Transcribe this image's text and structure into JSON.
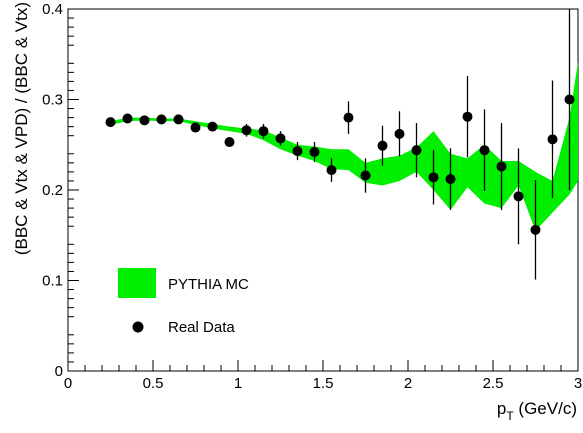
{
  "chart_data": {
    "type": "scatter",
    "xlabel_main": "p",
    "xlabel_sub": "T",
    "xlabel_unit": " (GeV/c)",
    "ylabel": "(BBC & Vtx & VPD) / (BBC & Vtx)",
    "xlim": [
      0,
      3
    ],
    "ylim": [
      0,
      0.4
    ],
    "xticks": [
      {
        "value": 0,
        "label": "0"
      },
      {
        "value": 0.5,
        "label": "0.5"
      },
      {
        "value": 1,
        "label": "1"
      },
      {
        "value": 1.5,
        "label": "1.5"
      },
      {
        "value": 2,
        "label": "2"
      },
      {
        "value": 2.5,
        "label": "2.5"
      },
      {
        "value": 3,
        "label": "3"
      }
    ],
    "yticks": [
      {
        "value": 0,
        "label": "0"
      },
      {
        "value": 0.1,
        "label": "0.1"
      },
      {
        "value": 0.2,
        "label": "0.2"
      },
      {
        "value": 0.3,
        "label": "0.3"
      },
      {
        "value": 0.4,
        "label": "0.4"
      }
    ],
    "legend": {
      "placement": "bottom-left",
      "entries": [
        {
          "label": "PYTHIA MC",
          "kind": "band"
        },
        {
          "label": "Real Data",
          "kind": "marker"
        }
      ]
    },
    "band": {
      "name": "PYTHIA MC",
      "color": "#00ee00",
      "x": [
        0.25,
        0.35,
        0.45,
        0.55,
        0.65,
        0.75,
        0.85,
        0.95,
        1.05,
        1.15,
        1.25,
        1.35,
        1.45,
        1.55,
        1.65,
        1.75,
        1.85,
        1.95,
        2.05,
        2.15,
        2.25,
        2.35,
        2.45,
        2.55,
        2.65,
        2.75,
        2.85,
        2.95,
        3.0
      ],
      "upper": [
        0.276,
        0.28,
        0.28,
        0.279,
        0.279,
        0.276,
        0.273,
        0.27,
        0.268,
        0.266,
        0.258,
        0.25,
        0.248,
        0.245,
        0.245,
        0.23,
        0.235,
        0.238,
        0.247,
        0.265,
        0.24,
        0.235,
        0.25,
        0.232,
        0.232,
        0.22,
        0.21,
        0.28,
        0.342
      ],
      "lower": [
        0.272,
        0.276,
        0.277,
        0.276,
        0.276,
        0.272,
        0.268,
        0.265,
        0.262,
        0.255,
        0.245,
        0.238,
        0.232,
        0.223,
        0.222,
        0.208,
        0.205,
        0.21,
        0.22,
        0.2,
        0.178,
        0.203,
        0.185,
        0.18,
        0.205,
        0.155,
        0.175,
        0.195,
        0.21
      ]
    },
    "series": [
      {
        "name": "Real Data",
        "color": "#000000",
        "x": [
          0.25,
          0.35,
          0.45,
          0.55,
          0.65,
          0.75,
          0.85,
          0.95,
          1.05,
          1.15,
          1.25,
          1.35,
          1.45,
          1.55,
          1.65,
          1.75,
          1.85,
          1.95,
          2.05,
          2.15,
          2.25,
          2.35,
          2.45,
          2.55,
          2.65,
          2.75,
          2.85,
          2.95
        ],
        "y": [
          0.275,
          0.279,
          0.277,
          0.278,
          0.278,
          0.269,
          0.27,
          0.253,
          0.266,
          0.265,
          0.257,
          0.243,
          0.242,
          0.222,
          0.28,
          0.216,
          0.249,
          0.262,
          0.244,
          0.214,
          0.212,
          0.281,
          0.244,
          0.226,
          0.193,
          0.156,
          0.256,
          0.3
        ],
        "err": [
          0.003,
          0.003,
          0.003,
          0.003,
          0.003,
          0.004,
          0.004,
          0.005,
          0.007,
          0.008,
          0.008,
          0.01,
          0.011,
          0.013,
          0.018,
          0.019,
          0.022,
          0.025,
          0.03,
          0.03,
          0.034,
          0.045,
          0.045,
          0.048,
          0.053,
          0.055,
          0.065,
          0.1
        ]
      }
    ]
  }
}
